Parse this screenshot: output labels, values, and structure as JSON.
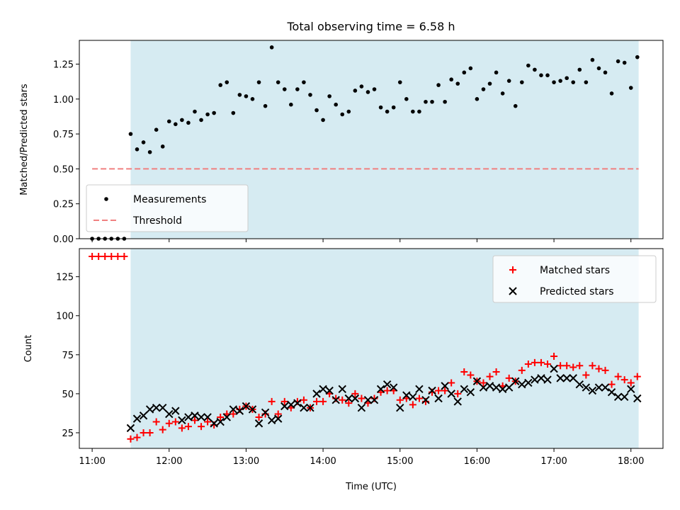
{
  "chart_data": [
    {
      "type": "scatter",
      "title": "Total observing time = 6.58 h",
      "ylabel": "Matched/Predicted stars",
      "xlim": [
        "10:50",
        "18:25"
      ],
      "ylim": [
        0,
        1.42
      ],
      "xticks": [
        "11:00",
        "12:00",
        "13:00",
        "14:00",
        "15:00",
        "16:00",
        "17:00",
        "18:00"
      ],
      "yticks": [
        "0.00",
        "0.25",
        "0.50",
        "0.75",
        "1.00",
        "1.25"
      ],
      "shaded_span": [
        "11:30",
        "18:06"
      ],
      "legend": {
        "placement": "lower-left",
        "entries": [
          "Measurements",
          "Threshold"
        ]
      },
      "series": [
        {
          "name": "Measurements",
          "color": "#000000",
          "marker": "dot",
          "points": [
            [
              "11:00",
              0
            ],
            [
              "11:05",
              0
            ],
            [
              "11:10",
              0
            ],
            [
              "11:15",
              0
            ],
            [
              "11:20",
              0
            ],
            [
              "11:25",
              0
            ],
            [
              "11:30",
              0.75
            ],
            [
              "11:35",
              0.64
            ],
            [
              "11:40",
              0.69
            ],
            [
              "11:45",
              0.62
            ],
            [
              "11:50",
              0.78
            ],
            [
              "11:55",
              0.66
            ],
            [
              "12:00",
              0.84
            ],
            [
              "12:05",
              0.82
            ],
            [
              "12:10",
              0.85
            ],
            [
              "12:15",
              0.83
            ],
            [
              "12:20",
              0.91
            ],
            [
              "12:25",
              0.85
            ],
            [
              "12:30",
              0.89
            ],
            [
              "12:35",
              0.9
            ],
            [
              "12:40",
              1.1
            ],
            [
              "12:45",
              1.12
            ],
            [
              "12:50",
              0.9
            ],
            [
              "12:55",
              1.03
            ],
            [
              "13:00",
              1.02
            ],
            [
              "13:05",
              1.0
            ],
            [
              "13:10",
              1.12
            ],
            [
              "13:15",
              0.95
            ],
            [
              "13:20",
              1.37
            ],
            [
              "13:25",
              1.12
            ],
            [
              "13:30",
              1.07
            ],
            [
              "13:35",
              0.96
            ],
            [
              "13:40",
              1.07
            ],
            [
              "13:45",
              1.12
            ],
            [
              "13:50",
              1.03
            ],
            [
              "13:55",
              0.92
            ],
            [
              "14:00",
              0.85
            ],
            [
              "14:05",
              1.02
            ],
            [
              "14:10",
              0.96
            ],
            [
              "14:15",
              0.89
            ],
            [
              "14:20",
              0.91
            ],
            [
              "14:25",
              1.06
            ],
            [
              "14:30",
              1.09
            ],
            [
              "14:35",
              1.05
            ],
            [
              "14:40",
              1.07
            ],
            [
              "14:45",
              0.94
            ],
            [
              "14:50",
              0.91
            ],
            [
              "14:55",
              0.94
            ],
            [
              "15:00",
              1.12
            ],
            [
              "15:05",
              1.0
            ],
            [
              "15:10",
              0.91
            ],
            [
              "15:15",
              0.91
            ],
            [
              "15:20",
              0.98
            ],
            [
              "15:25",
              0.98
            ],
            [
              "15:30",
              1.1
            ],
            [
              "15:35",
              0.98
            ],
            [
              "15:40",
              1.14
            ],
            [
              "15:45",
              1.11
            ],
            [
              "15:50",
              1.19
            ],
            [
              "15:55",
              1.22
            ],
            [
              "16:00",
              1.0
            ],
            [
              "16:05",
              1.07
            ],
            [
              "16:10",
              1.11
            ],
            [
              "16:15",
              1.19
            ],
            [
              "16:20",
              1.04
            ],
            [
              "16:25",
              1.13
            ],
            [
              "16:30",
              0.95
            ],
            [
              "16:35",
              1.12
            ],
            [
              "16:40",
              1.24
            ],
            [
              "16:45",
              1.21
            ],
            [
              "16:50",
              1.17
            ],
            [
              "16:55",
              1.17
            ],
            [
              "17:00",
              1.12
            ],
            [
              "17:05",
              1.13
            ],
            [
              "17:10",
              1.15
            ],
            [
              "17:15",
              1.12
            ],
            [
              "17:20",
              1.21
            ],
            [
              "17:25",
              1.12
            ],
            [
              "17:30",
              1.28
            ],
            [
              "17:35",
              1.22
            ],
            [
              "17:40",
              1.19
            ],
            [
              "17:45",
              1.04
            ],
            [
              "17:50",
              1.27
            ],
            [
              "17:55",
              1.26
            ],
            [
              "18:00",
              1.08
            ],
            [
              "18:05",
              1.3
            ]
          ]
        },
        {
          "name": "Threshold",
          "color": "#f08080",
          "style": "dashed",
          "points": [
            [
              "11:00",
              0.5
            ],
            [
              "18:06",
              0.5
            ]
          ]
        }
      ]
    },
    {
      "type": "scatter",
      "xlabel": "Time (UTC)",
      "ylabel": "Count",
      "xlim": [
        "10:50",
        "18:25"
      ],
      "ylim": [
        15,
        143
      ],
      "xticks": [
        "11:00",
        "12:00",
        "13:00",
        "14:00",
        "15:00",
        "16:00",
        "17:00",
        "18:00"
      ],
      "yticks": [
        "25",
        "50",
        "75",
        "100",
        "125"
      ],
      "shaded_span": [
        "11:30",
        "18:06"
      ],
      "legend": {
        "placement": "upper-right",
        "entries": [
          "Matched stars",
          "Predicted stars"
        ]
      },
      "series": [
        {
          "name": "Matched stars",
          "color": "#ff0000",
          "marker": "plus",
          "points": [
            [
              "11:00",
              138
            ],
            [
              "11:05",
              138
            ],
            [
              "11:10",
              138
            ],
            [
              "11:15",
              138
            ],
            [
              "11:20",
              138
            ],
            [
              "11:25",
              138
            ],
            [
              "11:30",
              21
            ],
            [
              "11:35",
              22
            ],
            [
              "11:40",
              25
            ],
            [
              "11:45",
              25
            ],
            [
              "11:50",
              32
            ],
            [
              "11:55",
              27
            ],
            [
              "12:00",
              31
            ],
            [
              "12:05",
              32
            ],
            [
              "12:10",
              28
            ],
            [
              "12:15",
              29
            ],
            [
              "12:20",
              33
            ],
            [
              "12:25",
              29
            ],
            [
              "12:30",
              32
            ],
            [
              "12:35",
              30
            ],
            [
              "12:40",
              35
            ],
            [
              "12:45",
              37
            ],
            [
              "12:50",
              37
            ],
            [
              "12:55",
              40
            ],
            [
              "13:00",
              42
            ],
            [
              "13:05",
              40
            ],
            [
              "13:10",
              35
            ],
            [
              "13:15",
              37
            ],
            [
              "13:20",
              45
            ],
            [
              "13:25",
              37
            ],
            [
              "13:30",
              45
            ],
            [
              "13:35",
              41
            ],
            [
              "13:40",
              45
            ],
            [
              "13:45",
              46
            ],
            [
              "13:50",
              41
            ],
            [
              "13:55",
              45
            ],
            [
              "14:00",
              45
            ],
            [
              "14:05",
              50
            ],
            [
              "14:10",
              47
            ],
            [
              "14:15",
              46
            ],
            [
              "14:20",
              44
            ],
            [
              "14:25",
              50
            ],
            [
              "14:30",
              47
            ],
            [
              "14:35",
              44
            ],
            [
              "14:40",
              47
            ],
            [
              "14:45",
              51
            ],
            [
              "14:50",
              52
            ],
            [
              "14:55",
              52
            ],
            [
              "15:00",
              46
            ],
            [
              "15:05",
              47
            ],
            [
              "15:10",
              43
            ],
            [
              "15:15",
              47
            ],
            [
              "15:20",
              45
            ],
            [
              "15:25",
              51
            ],
            [
              "15:30",
              52
            ],
            [
              "15:35",
              52
            ],
            [
              "15:40",
              57
            ],
            [
              "15:45",
              50
            ],
            [
              "15:50",
              64
            ],
            [
              "15:55",
              62
            ],
            [
              "16:00",
              58
            ],
            [
              "16:05",
              57
            ],
            [
              "16:10",
              61
            ],
            [
              "16:15",
              64
            ],
            [
              "16:20",
              55
            ],
            [
              "16:25",
              60
            ],
            [
              "16:30",
              58
            ],
            [
              "16:35",
              65
            ],
            [
              "16:40",
              69
            ],
            [
              "16:45",
              70
            ],
            [
              "16:50",
              70
            ],
            [
              "16:55",
              69
            ],
            [
              "17:00",
              74
            ],
            [
              "17:05",
              68
            ],
            [
              "17:10",
              68
            ],
            [
              "17:15",
              67
            ],
            [
              "17:20",
              68
            ],
            [
              "17:25",
              62
            ],
            [
              "17:30",
              68
            ],
            [
              "17:35",
              66
            ],
            [
              "17:40",
              65
            ],
            [
              "17:45",
              56
            ],
            [
              "17:50",
              61
            ],
            [
              "17:55",
              59
            ],
            [
              "18:00",
              57
            ],
            [
              "18:05",
              61
            ]
          ]
        },
        {
          "name": "Predicted stars",
          "color": "#000000",
          "marker": "x",
          "points": [
            [
              "11:30",
              28
            ],
            [
              "11:35",
              34
            ],
            [
              "11:40",
              36
            ],
            [
              "11:45",
              40
            ],
            [
              "11:50",
              41
            ],
            [
              "11:55",
              41
            ],
            [
              "12:00",
              37
            ],
            [
              "12:05",
              39
            ],
            [
              "12:10",
              33
            ],
            [
              "12:15",
              35
            ],
            [
              "12:20",
              36
            ],
            [
              "12:25",
              35
            ],
            [
              "12:30",
              35
            ],
            [
              "12:35",
              31
            ],
            [
              "12:40",
              32
            ],
            [
              "12:45",
              35
            ],
            [
              "12:50",
              40
            ],
            [
              "12:55",
              39
            ],
            [
              "13:00",
              42
            ],
            [
              "13:05",
              40
            ],
            [
              "13:10",
              31
            ],
            [
              "13:15",
              38
            ],
            [
              "13:20",
              33
            ],
            [
              "13:25",
              34
            ],
            [
              "13:30",
              42
            ],
            [
              "13:35",
              43
            ],
            [
              "13:40",
              44
            ],
            [
              "13:45",
              41
            ],
            [
              "13:50",
              41
            ],
            [
              "13:55",
              50
            ],
            [
              "14:00",
              53
            ],
            [
              "14:05",
              52
            ],
            [
              "14:10",
              46
            ],
            [
              "14:15",
              53
            ],
            [
              "14:20",
              47
            ],
            [
              "14:25",
              47
            ],
            [
              "14:30",
              41
            ],
            [
              "14:35",
              46
            ],
            [
              "14:40",
              46
            ],
            [
              "14:45",
              53
            ],
            [
              "14:50",
              56
            ],
            [
              "14:55",
              54
            ],
            [
              "15:00",
              41
            ],
            [
              "15:05",
              49
            ],
            [
              "15:10",
              48
            ],
            [
              "15:15",
              53
            ],
            [
              "15:20",
              46
            ],
            [
              "15:25",
              52
            ],
            [
              "15:30",
              47
            ],
            [
              "15:35",
              55
            ],
            [
              "15:40",
              50
            ],
            [
              "15:45",
              45
            ],
            [
              "15:50",
              53
            ],
            [
              "15:55",
              51
            ],
            [
              "16:00",
              58
            ],
            [
              "16:05",
              54
            ],
            [
              "16:10",
              55
            ],
            [
              "16:15",
              54
            ],
            [
              "16:20",
              53
            ],
            [
              "16:25",
              54
            ],
            [
              "16:30",
              58
            ],
            [
              "16:35",
              56
            ],
            [
              "16:40",
              57
            ],
            [
              "16:45",
              59
            ],
            [
              "16:50",
              60
            ],
            [
              "16:55",
              59
            ],
            [
              "17:00",
              66
            ],
            [
              "17:05",
              60
            ],
            [
              "17:10",
              60
            ],
            [
              "17:15",
              60
            ],
            [
              "17:20",
              56
            ],
            [
              "17:25",
              54
            ],
            [
              "17:30",
              52
            ],
            [
              "17:35",
              54
            ],
            [
              "17:40",
              54
            ],
            [
              "17:45",
              51
            ],
            [
              "17:50",
              48
            ],
            [
              "17:55",
              48
            ],
            [
              "18:00",
              53
            ],
            [
              "18:05",
              47
            ]
          ]
        }
      ]
    }
  ]
}
